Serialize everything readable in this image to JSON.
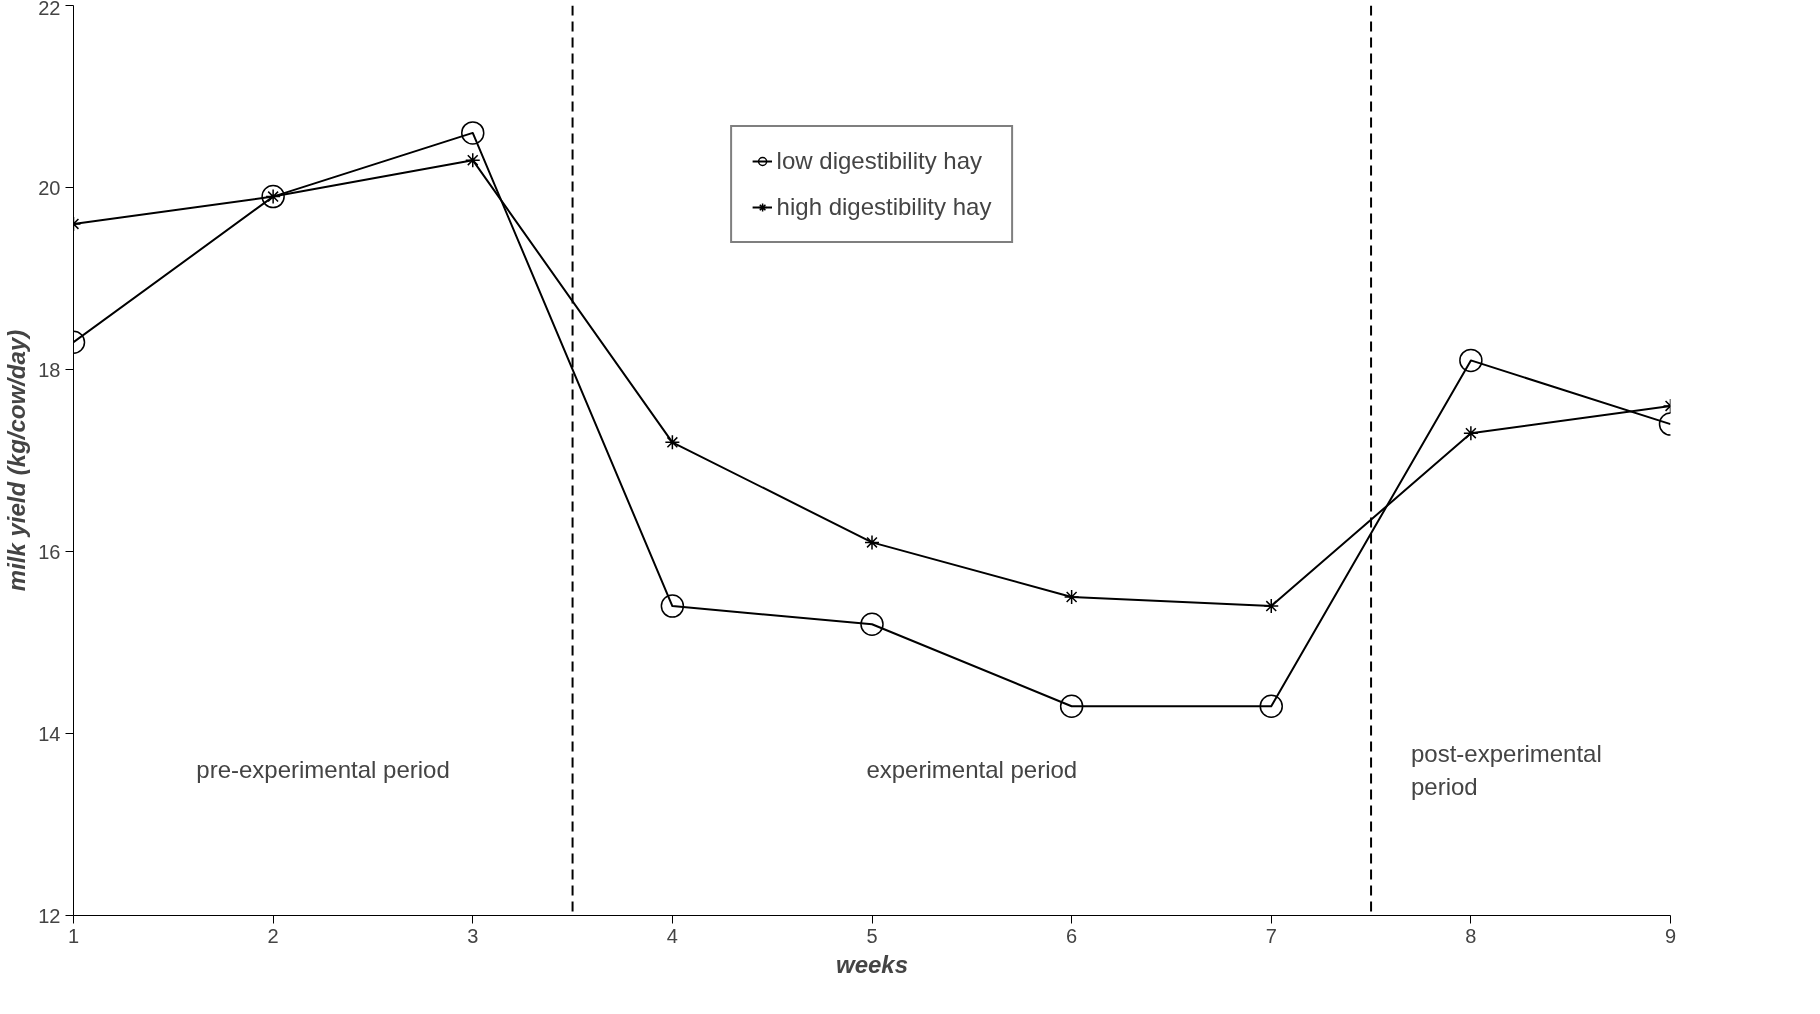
{
  "chart_data": {
    "type": "line",
    "xlabel": "weeks",
    "ylabel": "milk yield (kg/cow/day)",
    "x": [
      1,
      2,
      3,
      4,
      5,
      6,
      7,
      8,
      9
    ],
    "series": [
      {
        "name": "low digestibility hay",
        "color": "#000000",
        "marker": "circle",
        "values": [
          18.3,
          19.9,
          20.6,
          15.4,
          15.2,
          14.3,
          14.3,
          18.1,
          17.4
        ]
      },
      {
        "name": "high digestibility hay",
        "color": "#000000",
        "marker": "cross",
        "values": [
          19.6,
          19.9,
          20.3,
          17.2,
          16.1,
          15.5,
          15.4,
          17.3,
          17.6
        ]
      }
    ],
    "xlim": [
      1,
      9
    ],
    "xticks": [
      1,
      2,
      3,
      4,
      5,
      6,
      7,
      8,
      9
    ],
    "ylim": [
      12,
      22
    ],
    "yticks": [
      12,
      14,
      16,
      18,
      20,
      22
    ],
    "ref_lines": [
      {
        "axis": "x",
        "value": 3.5,
        "color": "#000000",
        "line_style": "dashed"
      },
      {
        "axis": "x",
        "value": 7.5,
        "color": "#000000",
        "line_style": "dashed"
      }
    ],
    "annotations": [
      "pre-experimental period",
      "experimental period",
      "post-experimental\nperiod"
    ],
    "grid": false,
    "legend": "top",
    "line_style": "solid"
  }
}
